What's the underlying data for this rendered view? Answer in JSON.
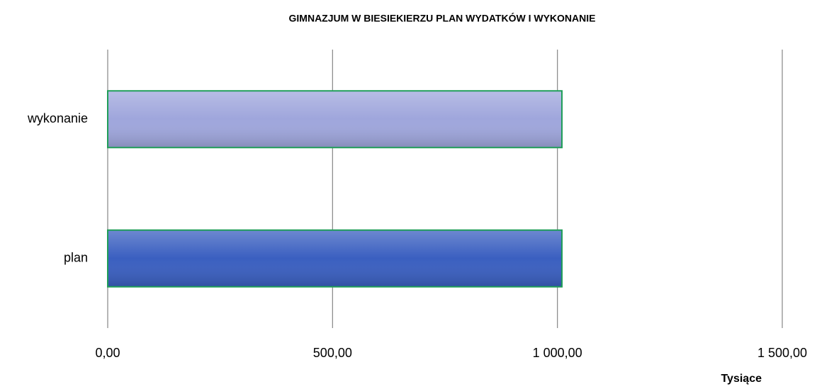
{
  "chart_data": {
    "type": "bar",
    "orientation": "horizontal",
    "title": "GIMNAZJUM W BIESIEKIERZU PLAN WYDATKÓW I WYKONANIE",
    "x_label": "Tysiące",
    "categories": [
      "plan",
      "wykonanie"
    ],
    "values": [
      1010,
      1010
    ],
    "colors": [
      "#3a5fc0",
      "#9fa6dc"
    ],
    "edge_color": "#1f9e58",
    "xlim": [
      0,
      1500
    ],
    "xticks": [
      {
        "value": 0,
        "label": "0,00"
      },
      {
        "value": 500,
        "label": "500,00"
      },
      {
        "value": 1000,
        "label": "1 000,00"
      },
      {
        "value": 1500,
        "label": "1 500,00"
      }
    ],
    "grid": true
  }
}
